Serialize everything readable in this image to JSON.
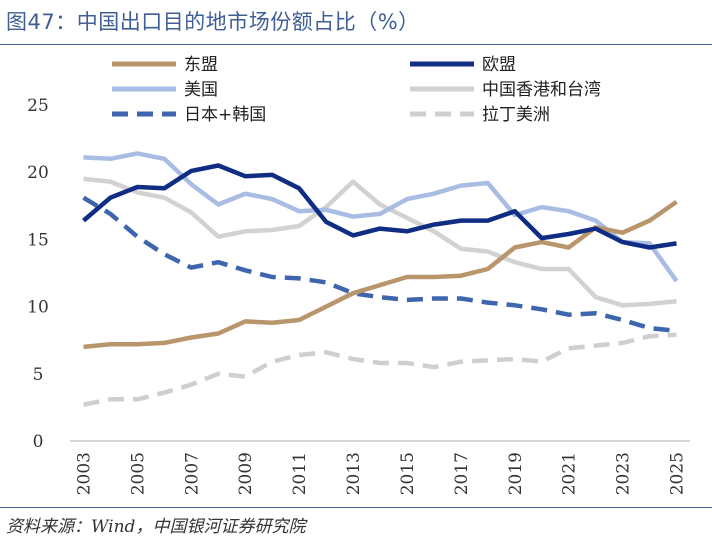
{
  "figure": {
    "title": "图47：中国出口目的地市场份额占比（%）",
    "source": "资料来源：Wind，中国银河证券研究院"
  },
  "chart_data": {
    "type": "line",
    "title": "图47：中国出口目的地市场份额占比（%）",
    "xlabel": "",
    "ylabel": "",
    "ylim": [
      0,
      25
    ],
    "yticks": [
      0,
      5,
      10,
      15,
      20,
      25
    ],
    "xticks": [
      "2003",
      "2005",
      "2007",
      "2009",
      "2011",
      "2013",
      "2015",
      "2017",
      "2019",
      "2021",
      "2023",
      "2025"
    ],
    "grid": false,
    "legend": "top",
    "x": [
      2003,
      2004,
      2005,
      2006,
      2007,
      2008,
      2009,
      2010,
      2011,
      2012,
      2013,
      2014,
      2015,
      2016,
      2017,
      2018,
      2019,
      2020,
      2021,
      2022,
      2023,
      2024,
      2025
    ],
    "series": [
      {
        "name": "东盟",
        "color": "#b8956b",
        "dash": "solid",
        "values": [
          7.0,
          7.2,
          7.2,
          7.3,
          7.7,
          8.0,
          8.9,
          8.8,
          9.0,
          10.0,
          11.0,
          11.6,
          12.2,
          12.2,
          12.3,
          12.8,
          14.4,
          14.8,
          14.4,
          15.9,
          15.5,
          16.4,
          17.8
        ]
      },
      {
        "name": "欧盟",
        "color": "#0f2d82",
        "dash": "solid",
        "values": [
          16.4,
          18.1,
          18.9,
          18.8,
          20.1,
          20.5,
          19.7,
          19.8,
          18.8,
          16.3,
          15.3,
          15.8,
          15.6,
          16.1,
          16.4,
          16.4,
          17.1,
          15.1,
          15.4,
          15.8,
          14.8,
          14.4,
          14.7
        ]
      },
      {
        "name": "美国",
        "color": "#a9bde4",
        "dash": "solid",
        "values": [
          21.1,
          21.0,
          21.4,
          21.0,
          19.1,
          17.6,
          18.4,
          18.0,
          17.1,
          17.2,
          16.7,
          16.9,
          18.0,
          18.4,
          19.0,
          19.2,
          16.8,
          17.4,
          17.1,
          16.4,
          14.8,
          14.7,
          11.9
        ]
      },
      {
        "name": "中国香港和台湾",
        "color": "#d2d2d2",
        "dash": "solid",
        "values": [
          19.5,
          19.3,
          18.5,
          18.1,
          17.0,
          15.2,
          15.6,
          15.7,
          16.0,
          17.4,
          19.3,
          17.6,
          16.6,
          15.6,
          14.3,
          14.1,
          13.3,
          12.8,
          12.8,
          10.7,
          10.1,
          10.2,
          10.4
        ]
      },
      {
        "name": "日本+韩国",
        "color": "#3e65ae",
        "dash": "dashed",
        "values": [
          18.1,
          16.9,
          15.2,
          13.9,
          12.9,
          13.3,
          12.7,
          12.2,
          12.1,
          11.8,
          11.0,
          10.7,
          10.5,
          10.6,
          10.6,
          10.3,
          10.1,
          9.8,
          9.4,
          9.5,
          9.0,
          8.4,
          8.2
        ]
      },
      {
        "name": "拉丁美洲",
        "color": "#cfcfcf",
        "dash": "dashed",
        "values": [
          2.7,
          3.1,
          3.1,
          3.6,
          4.2,
          5.0,
          4.8,
          5.9,
          6.4,
          6.6,
          6.1,
          5.8,
          5.8,
          5.5,
          5.9,
          6.0,
          6.1,
          5.9,
          6.9,
          7.1,
          7.3,
          7.8,
          7.9
        ]
      }
    ]
  }
}
